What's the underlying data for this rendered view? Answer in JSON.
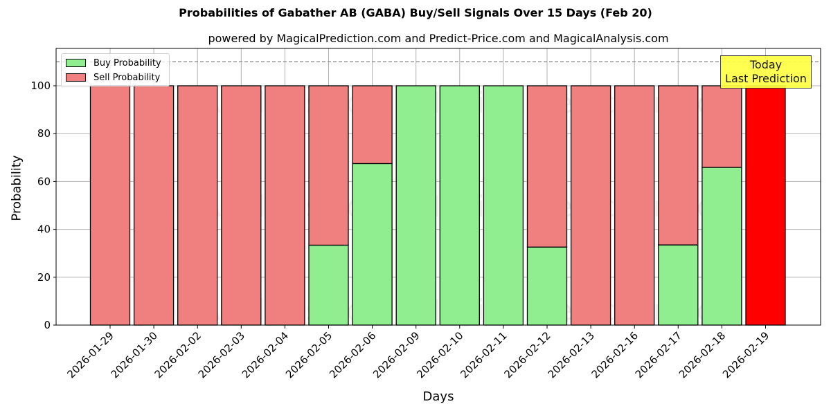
{
  "chart_data": {
    "type": "bar",
    "stacked": true,
    "title": "Probabilities of Gabather AB (GABA) Buy/Sell Signals Over 15 Days (Feb 20)",
    "subtitle": "powered by MagicalPrediction.com and Predict-Price.com and MagicalAnalysis.com",
    "xlabel": "Days",
    "ylabel": "Probability",
    "ylim": [
      0,
      115
    ],
    "yticks": [
      0,
      20,
      40,
      60,
      80,
      100
    ],
    "grid": true,
    "legend_position": "upper left",
    "categories": [
      "2026-01-29",
      "2026-01-30",
      "2026-02-02",
      "2026-02-03",
      "2026-02-04",
      "2026-02-05",
      "2026-02-06",
      "2026-02-09",
      "2026-02-10",
      "2026-02-11",
      "2026-02-12",
      "2026-02-13",
      "2026-02-16",
      "2026-02-17",
      "2026-02-18",
      "2026-02-19"
    ],
    "series": [
      {
        "name": "Buy Probability",
        "color": "#90ee90",
        "values": [
          0,
          0,
          0,
          0,
          0,
          33.4,
          67.5,
          100,
          100,
          100,
          32.6,
          0,
          0,
          33.5,
          65.9,
          0
        ]
      },
      {
        "name": "Sell Probability",
        "color": "#f08080",
        "values": [
          100,
          100,
          100,
          100,
          100,
          66.6,
          32.5,
          0,
          0,
          0,
          67.4,
          100,
          100,
          66.5,
          34.1,
          100
        ]
      }
    ],
    "highlight": {
      "category": "2026-02-19",
      "color": "#ff0000",
      "label": "Today\nLast Prediction"
    },
    "reference_line": {
      "y": 110,
      "style": "dashed",
      "color": "#808080"
    },
    "watermarks": [
      "MagicalAnalysis.com",
      "MagicalPrediction.com"
    ]
  },
  "legend": {
    "buy_label": "Buy Probability",
    "sell_label": "Sell Probability"
  },
  "annotation": {
    "line1": "Today",
    "line2": "Last Prediction"
  },
  "colors": {
    "buy": "#90ee90",
    "sell": "#f08080",
    "today": "#ff0000",
    "annotation_bg": "#ffff44"
  }
}
